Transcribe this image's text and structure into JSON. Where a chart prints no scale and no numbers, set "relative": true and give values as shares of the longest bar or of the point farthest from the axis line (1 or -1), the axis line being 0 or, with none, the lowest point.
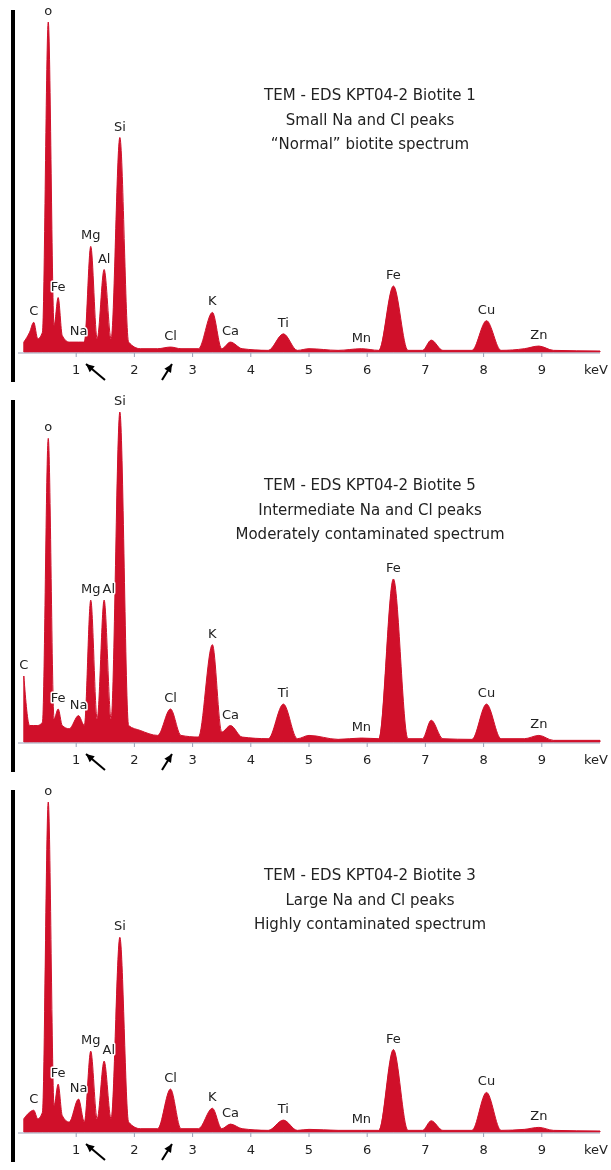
{
  "chart_data": [
    {
      "type": "area",
      "title": "TEM - EDS KPT04-2 Biotite 1",
      "subtitle": "Small Na and Cl  peaks\n“Normal” biotite spectrum",
      "xlabel": "keV",
      "relative": true,
      "color": "#d0102a",
      "xlim": [
        0,
        10
      ],
      "xticks": [
        1,
        2,
        3,
        4,
        5,
        6,
        7,
        8,
        9
      ],
      "x": [
        0.1,
        0.2,
        0.27,
        0.34,
        0.42,
        0.52,
        0.62,
        0.69,
        0.76,
        0.88,
        1.04,
        1.14,
        1.25,
        1.36,
        1.48,
        1.6,
        1.75,
        1.9,
        2.1,
        2.4,
        2.62,
        2.8,
        3.1,
        3.34,
        3.5,
        3.65,
        3.85,
        4.3,
        4.56,
        4.8,
        5.0,
        5.5,
        5.9,
        6.2,
        6.45,
        6.7,
        6.95,
        7.1,
        7.3,
        7.8,
        8.05,
        8.3,
        8.7,
        8.95,
        9.2,
        10
      ],
      "values": [
        0.03,
        0.06,
        0.09,
        0.04,
        0.06,
        1,
        0.08,
        0.165,
        0.05,
        0.03,
        0.03,
        0.03,
        0.32,
        0.04,
        0.25,
        0.04,
        0.65,
        0.03,
        0.01,
        0.01,
        0.015,
        0.01,
        0.01,
        0.12,
        0.01,
        0.03,
        0.01,
        0.005,
        0.055,
        0.005,
        0.01,
        0.005,
        0.01,
        0.005,
        0.2,
        0.005,
        0.005,
        0.036,
        0.005,
        0.005,
        0.095,
        0.005,
        0.01,
        0.018,
        0.005,
        0.003
      ],
      "annotations": [
        {
          "text": "C",
          "x": 0.27,
          "y": 0.09
        },
        {
          "text": "o",
          "x": 0.52,
          "y": 1
        },
        {
          "text": "Fe",
          "x": 0.69,
          "y": 0.165
        },
        {
          "text": "Na",
          "x": 1.04,
          "y": 0.03
        },
        {
          "text": "Mg",
          "x": 1.25,
          "y": 0.32
        },
        {
          "text": "Al",
          "x": 1.48,
          "y": 0.25
        },
        {
          "text": "Si",
          "x": 1.75,
          "y": 0.65
        },
        {
          "text": "Cl",
          "x": 2.62,
          "y": 0.015
        },
        {
          "text": "K",
          "x": 3.34,
          "y": 0.12
        },
        {
          "text": "Ca",
          "x": 3.65,
          "y": 0.03
        },
        {
          "text": "Ti",
          "x": 4.56,
          "y": 0.055
        },
        {
          "text": "Mn",
          "x": 5.9,
          "y": 0.01
        },
        {
          "text": "Fe",
          "x": 6.45,
          "y": 0.2
        },
        {
          "text": "Cu",
          "x": 8.05,
          "y": 0.095
        },
        {
          "text": "Zn",
          "x": 8.95,
          "y": 0.018
        }
      ]
    },
    {
      "type": "area",
      "title": "TEM - EDS KPT04-2 Biotite 5",
      "subtitle": "Intermediate Na and Cl peaks\nModerately contaminated spectrum",
      "xlabel": "keV",
      "relative": true,
      "color": "#d0102a",
      "xlim": [
        0,
        10
      ],
      "xticks": [
        1,
        2,
        3,
        4,
        5,
        6,
        7,
        8,
        9
      ],
      "x": [
        0.1,
        0.2,
        0.27,
        0.34,
        0.42,
        0.52,
        0.62,
        0.69,
        0.76,
        0.88,
        1.04,
        1.14,
        1.25,
        1.36,
        1.48,
        1.6,
        1.75,
        1.9,
        2.1,
        2.4,
        2.62,
        2.8,
        3.1,
        3.34,
        3.5,
        3.65,
        3.85,
        4.3,
        4.56,
        4.8,
        5.0,
        5.5,
        5.9,
        6.2,
        6.45,
        6.7,
        6.95,
        7.1,
        7.3,
        7.8,
        8.05,
        8.3,
        8.7,
        8.95,
        9.2,
        10
      ],
      "values": [
        0.2,
        0.05,
        0.05,
        0.05,
        0.06,
        0.92,
        0.07,
        0.1,
        0.05,
        0.04,
        0.08,
        0.05,
        0.43,
        0.07,
        0.43,
        0.07,
        1,
        0.05,
        0.035,
        0.02,
        0.1,
        0.02,
        0.015,
        0.295,
        0.03,
        0.05,
        0.015,
        0.01,
        0.115,
        0.01,
        0.02,
        0.008,
        0.012,
        0.01,
        0.494,
        0.01,
        0.01,
        0.066,
        0.01,
        0.008,
        0.115,
        0.01,
        0.01,
        0.02,
        0.005,
        0.005
      ],
      "annotations": [
        {
          "text": "C",
          "x": 0.1,
          "y": 0.2
        },
        {
          "text": "o",
          "x": 0.52,
          "y": 0.92
        },
        {
          "text": "Fe",
          "x": 0.69,
          "y": 0.1
        },
        {
          "text": "Na",
          "x": 1.04,
          "y": 0.08
        },
        {
          "text": "Mg",
          "x": 1.25,
          "y": 0.43
        },
        {
          "text": "Al",
          "x": 1.48,
          "y": 0.43
        },
        {
          "text": "Si",
          "x": 1.75,
          "y": 1
        },
        {
          "text": "Cl",
          "x": 2.62,
          "y": 0.1
        },
        {
          "text": "K",
          "x": 3.34,
          "y": 0.295
        },
        {
          "text": "Ca",
          "x": 3.65,
          "y": 0.05
        },
        {
          "text": "Ti",
          "x": 4.56,
          "y": 0.115
        },
        {
          "text": "Mn",
          "x": 5.9,
          "y": 0.012
        },
        {
          "text": "Fe",
          "x": 6.45,
          "y": 0.494
        },
        {
          "text": "Cu",
          "x": 8.05,
          "y": 0.115
        },
        {
          "text": "Zn",
          "x": 8.95,
          "y": 0.02
        }
      ]
    },
    {
      "type": "area",
      "title": "TEM - EDS KPT04-2 Biotite 3",
      "subtitle": "Large Na and Cl peaks\nHighly contaminated spectrum",
      "xlabel": "keV",
      "relative": true,
      "color": "#d0102a",
      "xlim": [
        0,
        10
      ],
      "xticks": [
        1,
        2,
        3,
        4,
        5,
        6,
        7,
        8,
        9
      ],
      "x": [
        0.1,
        0.2,
        0.27,
        0.34,
        0.42,
        0.52,
        0.62,
        0.69,
        0.76,
        0.88,
        1.04,
        1.14,
        1.25,
        1.36,
        1.48,
        1.6,
        1.75,
        1.9,
        2.1,
        2.4,
        2.62,
        2.8,
        3.1,
        3.34,
        3.5,
        3.65,
        3.85,
        4.3,
        4.56,
        4.8,
        5.0,
        5.5,
        5.9,
        6.2,
        6.45,
        6.7,
        6.95,
        7.1,
        7.3,
        7.8,
        8.05,
        8.3,
        8.7,
        8.95,
        9.2,
        10
      ],
      "values": [
        0.04,
        0.06,
        0.066,
        0.04,
        0.06,
        1,
        0.08,
        0.145,
        0.05,
        0.03,
        0.1,
        0.03,
        0.245,
        0.04,
        0.215,
        0.04,
        0.59,
        0.03,
        0.01,
        0.01,
        0.13,
        0.01,
        0.01,
        0.072,
        0.01,
        0.024,
        0.01,
        0.005,
        0.036,
        0.005,
        0.008,
        0.005,
        0.005,
        0.005,
        0.25,
        0.005,
        0.005,
        0.034,
        0.005,
        0.005,
        0.12,
        0.005,
        0.008,
        0.014,
        0.005,
        0.003
      ],
      "annotations": [
        {
          "text": "C",
          "x": 0.27,
          "y": 0.066
        },
        {
          "text": "o",
          "x": 0.52,
          "y": 1
        },
        {
          "text": "Fe",
          "x": 0.69,
          "y": 0.145
        },
        {
          "text": "Na",
          "x": 1.04,
          "y": 0.1
        },
        {
          "text": "Mg",
          "x": 1.25,
          "y": 0.245
        },
        {
          "text": "Al",
          "x": 1.48,
          "y": 0.215
        },
        {
          "text": "Si",
          "x": 1.75,
          "y": 0.59
        },
        {
          "text": "Cl",
          "x": 2.62,
          "y": 0.13
        },
        {
          "text": "K",
          "x": 3.34,
          "y": 0.072
        },
        {
          "text": "Ca",
          "x": 3.65,
          "y": 0.024
        },
        {
          "text": "Ti",
          "x": 4.56,
          "y": 0.036
        },
        {
          "text": "Mn",
          "x": 5.9,
          "y": 0.005
        },
        {
          "text": "Fe",
          "x": 6.45,
          "y": 0.25
        },
        {
          "text": "Cu",
          "x": 8.05,
          "y": 0.12
        },
        {
          "text": "Zn",
          "x": 8.95,
          "y": 0.014
        }
      ]
    }
  ]
}
